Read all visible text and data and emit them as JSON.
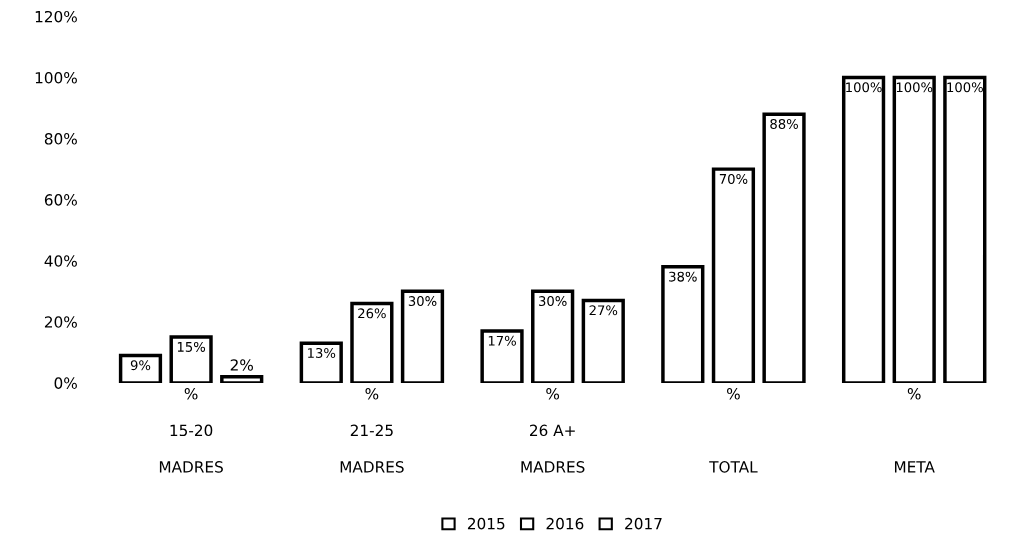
{
  "chart_data": {
    "type": "bar",
    "categories": [
      "%\n\n15-20\n\nMADRES",
      "%\n\n21-25\n\nMADRES",
      "%\n\n26 A+\n\nMADRES",
      "%\n\n\n\nTOTAL",
      "%\n\n\n\nMETA"
    ],
    "series": [
      {
        "name": "2015",
        "color": "#ffffff",
        "values": [
          9,
          13,
          17,
          38,
          100
        ],
        "value_labels": [
          "9%",
          "13%",
          "17%",
          "38%",
          "100%"
        ]
      },
      {
        "name": "2016",
        "color": "#ffffff",
        "values": [
          15,
          26,
          30,
          70,
          100
        ],
        "value_labels": [
          "15%",
          "26%",
          "30%",
          "70%",
          "100%"
        ]
      },
      {
        "name": "2017",
        "color": "#ffffff",
        "values": [
          2,
          30,
          27,
          88,
          100
        ],
        "value_labels": [
          "2%",
          "30%",
          "27%",
          "88%",
          "100%"
        ]
      }
    ],
    "ylim": [
      0,
      120
    ],
    "yticks": [
      {
        "value": 0,
        "label": "0%"
      },
      {
        "value": 20,
        "label": "20%"
      },
      {
        "value": 40,
        "label": "40%"
      },
      {
        "value": 60,
        "label": "60%"
      },
      {
        "value": 80,
        "label": "80%"
      },
      {
        "value": 100,
        "label": "100%"
      },
      {
        "value": 120,
        "label": "120%"
      }
    ],
    "grid": false,
    "legend": "bottom"
  }
}
